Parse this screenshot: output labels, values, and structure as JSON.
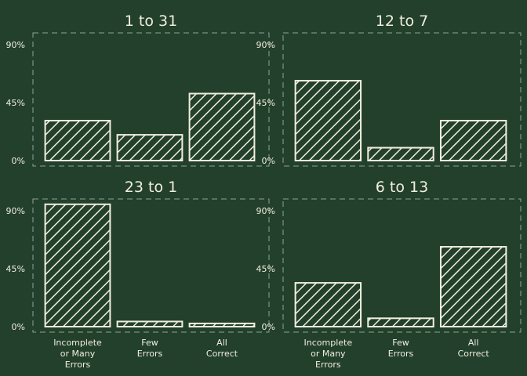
{
  "chart_data": [
    {
      "type": "bar",
      "title": "1 to 31",
      "categories": [
        "Incomplete or Many Errors",
        "Few Errors",
        "All Correct"
      ],
      "values": [
        31,
        20,
        52
      ],
      "ylim": [
        0,
        100
      ],
      "yticks": [
        "0%",
        "45%",
        "90%"
      ]
    },
    {
      "type": "bar",
      "title": "12 to 7",
      "categories": [
        "Incomplete or Many Errors",
        "Few Errors",
        "All Correct"
      ],
      "values": [
        62,
        10,
        31
      ],
      "ylim": [
        0,
        100
      ],
      "yticks": [
        "0%",
        "45%",
        "90%"
      ]
    },
    {
      "type": "bar",
      "title": "23 to 1",
      "categories": [
        "Incomplete or Many Errors",
        "Few Errors",
        "All Correct"
      ],
      "values": [
        95,
        4,
        2.5
      ],
      "ylim": [
        0,
        100
      ],
      "yticks": [
        "0%",
        "45%",
        "90%"
      ]
    },
    {
      "type": "bar",
      "title": "6 to 13",
      "categories": [
        "Incomplete or Many Errors",
        "Few Errors",
        "All Correct"
      ],
      "values": [
        34,
        6.5,
        62
      ],
      "ylim": [
        0,
        100
      ],
      "yticks": [
        "0%",
        "45%",
        "90%"
      ]
    }
  ],
  "x_labels": [
    [
      "Incomplete",
      "or Many",
      "Errors"
    ],
    [
      "Few",
      "Errors"
    ],
    [
      "All",
      "Correct"
    ]
  ],
  "colors": {
    "background": "#22402c",
    "ink": "#f2eedf",
    "frame": "#8fa496"
  }
}
